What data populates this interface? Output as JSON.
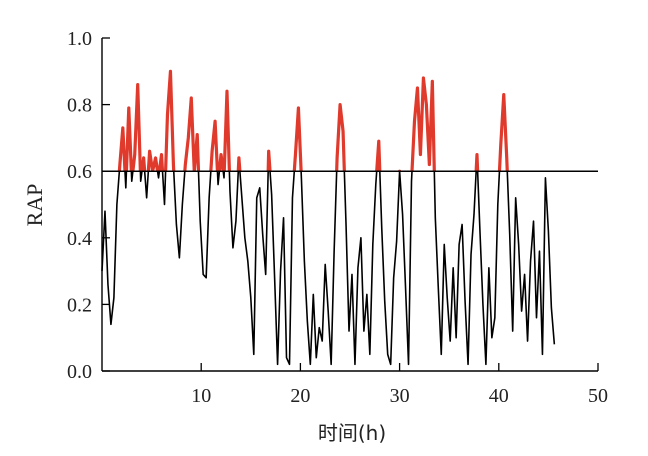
{
  "chart_data": {
    "type": "line",
    "title": "",
    "xlabel": "时间(h)",
    "ylabel": "RAP",
    "xlim": [
      0,
      50
    ],
    "ylim": [
      0,
      1
    ],
    "xticks": [
      10,
      20,
      30,
      40,
      50
    ],
    "xtick_labels": [
      "10",
      "20",
      "30",
      "40",
      "50"
    ],
    "yticks": [
      0,
      0.2,
      0.4,
      0.6,
      0.8,
      1
    ],
    "ytick_labels": [
      "0.0",
      "0.2",
      "0.4",
      "0.6",
      "0.8",
      "1.0"
    ],
    "threshold": 0.6,
    "grid": false,
    "colors": {
      "line": "#000000",
      "above_threshold": "#e03a2d",
      "threshold_line": "#000000",
      "axis": "#000000"
    },
    "series": [
      {
        "x": [
          0.0,
          0.3,
          0.6,
          0.9,
          1.2,
          1.5,
          1.8,
          2.1,
          2.4,
          2.7,
          3.0,
          3.3,
          3.6,
          3.9,
          4.2,
          4.5,
          4.8,
          5.1,
          5.4,
          5.7,
          6.0,
          6.3,
          6.6,
          6.9,
          7.2,
          7.5,
          7.8,
          8.1,
          8.4,
          8.7,
          9.0,
          9.3,
          9.6,
          9.9,
          10.2,
          10.5,
          10.8,
          11.1,
          11.4,
          11.7,
          12.0,
          12.3,
          12.6,
          12.9,
          13.2,
          13.5,
          13.8,
          14.1,
          14.4,
          14.7,
          15.0,
          15.3,
          15.6,
          15.9,
          16.2,
          16.5,
          16.8,
          17.1,
          17.4,
          17.7,
          18.0,
          18.3,
          18.6,
          18.9,
          19.2,
          19.5,
          19.8,
          20.1,
          20.4,
          20.7,
          21.0,
          21.3,
          21.6,
          21.9,
          22.2,
          22.5,
          22.8,
          23.1,
          23.4,
          23.7,
          24.0,
          24.3,
          24.6,
          24.9,
          25.2,
          25.5,
          25.8,
          26.1,
          26.4,
          26.7,
          27.0,
          27.3,
          27.6,
          27.9,
          28.2,
          28.5,
          28.8,
          29.1,
          29.4,
          29.7,
          30.0,
          30.3,
          30.6,
          30.9,
          31.2,
          31.5,
          31.8,
          32.1,
          32.4,
          32.7,
          33.0,
          33.3,
          33.6,
          33.9,
          34.2,
          34.5,
          34.8,
          35.1,
          35.4,
          35.7,
          36.0,
          36.3,
          36.6,
          36.9,
          37.2,
          37.5,
          37.8,
          38.1,
          38.4,
          38.7,
          39.0,
          39.3,
          39.6,
          39.9,
          40.2,
          40.5,
          40.8,
          41.1,
          41.4,
          41.7,
          42.0,
          42.3,
          42.6,
          42.9,
          43.2,
          43.5,
          43.8,
          44.1,
          44.4,
          44.7,
          45.0,
          45.3,
          45.6
        ],
        "values": [
          0.3,
          0.48,
          0.26,
          0.14,
          0.22,
          0.5,
          0.62,
          0.73,
          0.55,
          0.79,
          0.57,
          0.65,
          0.86,
          0.57,
          0.64,
          0.52,
          0.66,
          0.6,
          0.64,
          0.58,
          0.65,
          0.5,
          0.77,
          0.9,
          0.62,
          0.44,
          0.34,
          0.5,
          0.62,
          0.7,
          0.82,
          0.6,
          0.71,
          0.45,
          0.29,
          0.28,
          0.52,
          0.66,
          0.75,
          0.56,
          0.65,
          0.58,
          0.84,
          0.54,
          0.37,
          0.45,
          0.64,
          0.52,
          0.4,
          0.33,
          0.22,
          0.05,
          0.52,
          0.55,
          0.41,
          0.29,
          0.66,
          0.53,
          0.28,
          0.02,
          0.3,
          0.46,
          0.04,
          0.02,
          0.52,
          0.65,
          0.79,
          0.58,
          0.33,
          0.15,
          0.02,
          0.23,
          0.04,
          0.13,
          0.09,
          0.32,
          0.18,
          0.02,
          0.36,
          0.64,
          0.8,
          0.72,
          0.44,
          0.12,
          0.29,
          0.02,
          0.31,
          0.4,
          0.12,
          0.23,
          0.05,
          0.38,
          0.56,
          0.69,
          0.43,
          0.21,
          0.05,
          0.02,
          0.28,
          0.39,
          0.6,
          0.47,
          0.25,
          0.02,
          0.57,
          0.75,
          0.85,
          0.65,
          0.88,
          0.8,
          0.62,
          0.87,
          0.46,
          0.25,
          0.05,
          0.38,
          0.22,
          0.09,
          0.31,
          0.1,
          0.38,
          0.44,
          0.21,
          0.02,
          0.35,
          0.47,
          0.65,
          0.42,
          0.2,
          0.02,
          0.31,
          0.1,
          0.16,
          0.5,
          0.68,
          0.83,
          0.64,
          0.41,
          0.12,
          0.52,
          0.38,
          0.18,
          0.29,
          0.09,
          0.33,
          0.45,
          0.16,
          0.36,
          0.05,
          0.58,
          0.42,
          0.19,
          0.08
        ]
      }
    ]
  }
}
